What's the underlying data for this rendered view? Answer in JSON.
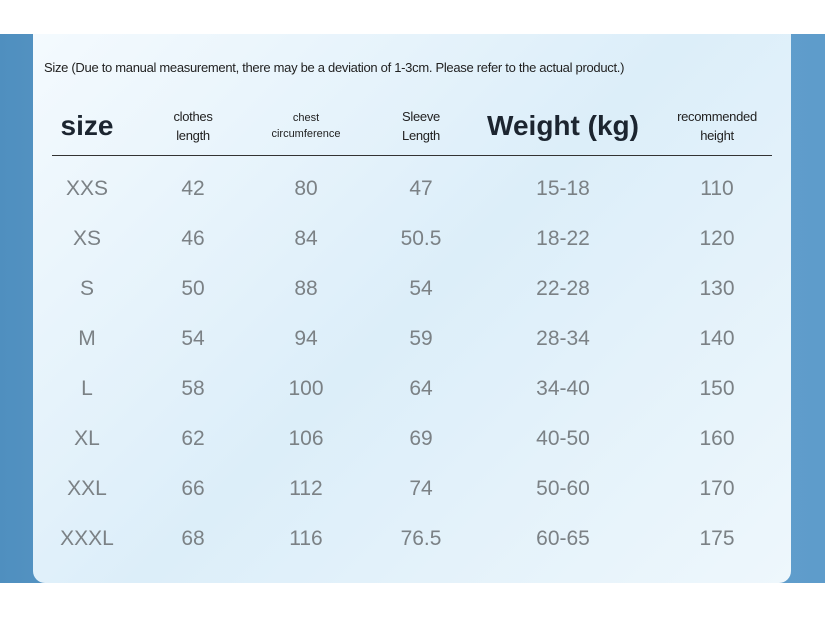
{
  "note": "Size (Due to manual measurement, there may be a deviation of 1-3cm. Please refer to the actual product.)",
  "table": {
    "headers": [
      [
        "size"
      ],
      [
        "clothes",
        "length"
      ],
      [
        "chest",
        "circumference"
      ],
      [
        "Sleeve",
        "Length"
      ],
      [
        "Weight (kg)"
      ],
      [
        "recommended",
        "height"
      ]
    ],
    "rows": [
      [
        "XXS",
        42,
        80,
        47,
        "15-18",
        110
      ],
      [
        "XS",
        46,
        84,
        50.5,
        "18-22",
        120
      ],
      [
        "S",
        50,
        88,
        54,
        "22-28",
        130
      ],
      [
        "M",
        54,
        94,
        59,
        "28-34",
        140
      ],
      [
        "L",
        58,
        100,
        64,
        "34-40",
        150
      ],
      [
        "XL",
        62,
        106,
        69,
        "40-50",
        160
      ],
      [
        "XXL",
        66,
        112,
        74,
        "50-60",
        170
      ],
      [
        "XXXL",
        68,
        116,
        76.5,
        "60-65",
        175
      ]
    ]
  }
}
